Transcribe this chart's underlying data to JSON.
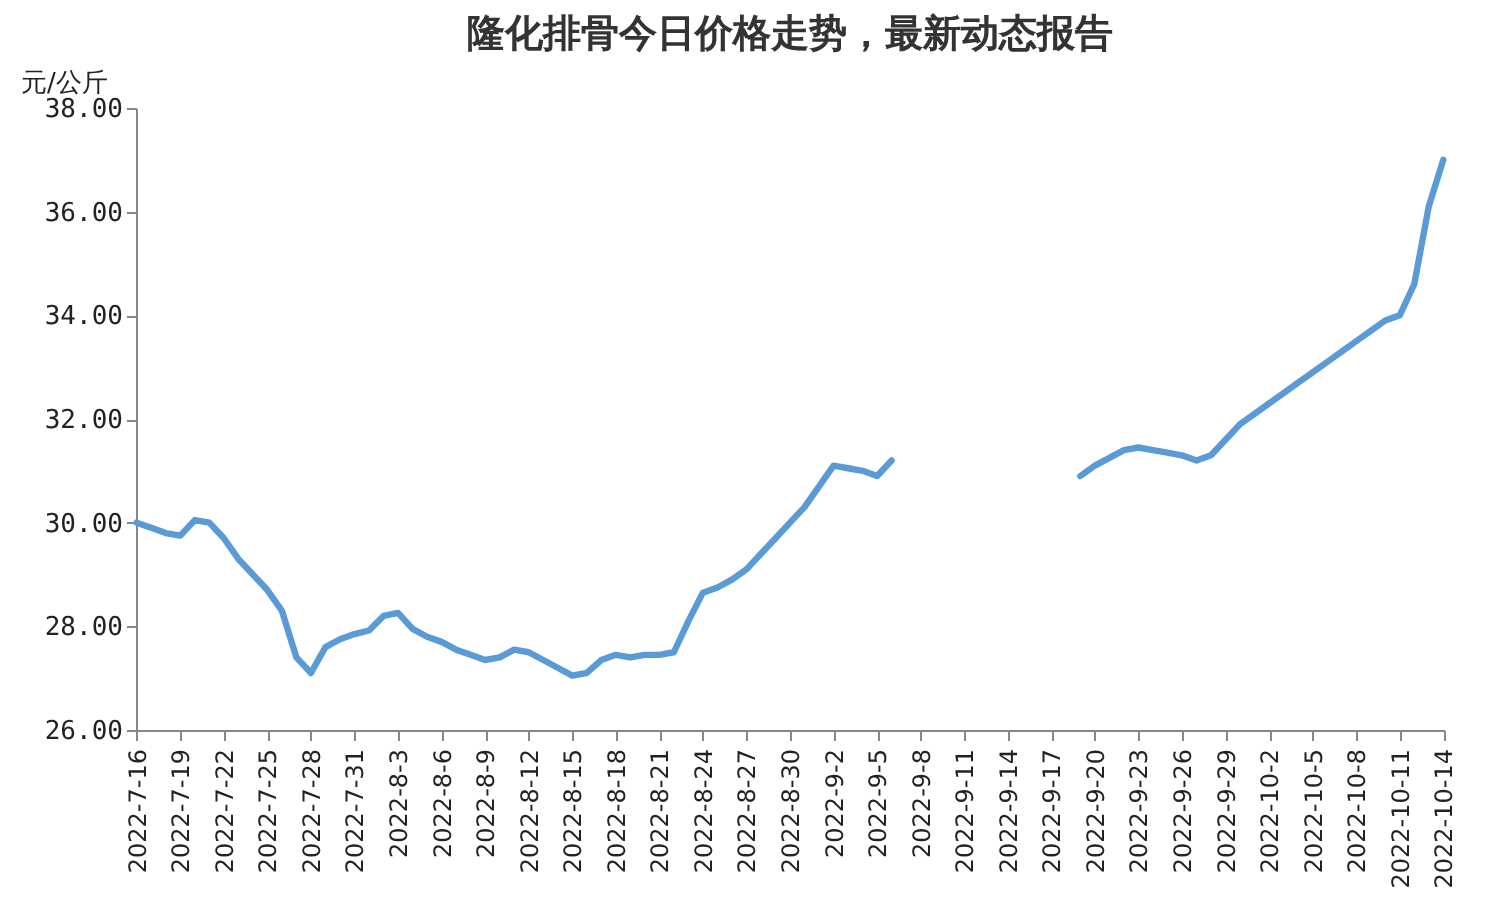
{
  "chart_data": {
    "type": "line",
    "title": "隆化排骨今日价格走势，最新动态报告",
    "ylabel": "元/公斤",
    "categories": [
      "2022-7-16",
      null,
      null,
      "2022-7-19",
      null,
      null,
      "2022-7-22",
      null,
      null,
      "2022-7-25",
      null,
      null,
      "2022-7-28",
      null,
      null,
      "2022-7-31",
      null,
      null,
      "2022-8-3",
      null,
      null,
      "2022-8-6",
      null,
      null,
      "2022-8-9",
      null,
      null,
      "2022-8-12",
      null,
      null,
      "2022-8-15",
      null,
      null,
      "2022-8-18",
      null,
      null,
      "2022-8-21",
      null,
      null,
      "2022-8-24",
      null,
      null,
      "2022-8-27",
      null,
      null,
      "2022-8-30",
      null,
      null,
      "2022-9-2",
      null,
      null,
      "2022-9-5",
      null,
      null,
      "2022-9-8",
      null,
      null,
      "2022-9-11",
      null,
      null,
      "2022-9-14",
      null,
      null,
      "2022-9-17",
      null,
      null,
      "2022-9-20",
      null,
      null,
      "2022-9-23",
      null,
      null,
      "2022-9-26",
      null,
      null,
      "2022-9-29",
      null,
      null,
      "2022-10-2",
      null,
      null,
      "2022-10-5",
      null,
      null,
      "2022-10-8",
      null,
      null,
      "2022-10-11",
      null,
      null,
      "2022-10-14"
    ],
    "series": [
      {
        "color": "#5b9bd5",
        "values": [
          30.0,
          29.9,
          29.8,
          29.75,
          30.05,
          30.0,
          29.7,
          29.3,
          29.0,
          28.7,
          28.3,
          27.4,
          27.1,
          27.6,
          27.75,
          27.85,
          27.92,
          28.2,
          28.26,
          27.95,
          27.8,
          27.7,
          27.55,
          27.45,
          27.35,
          27.4,
          27.55,
          27.5,
          27.35,
          27.2,
          27.05,
          27.1,
          27.35,
          27.45,
          27.4,
          27.45,
          27.45,
          27.5,
          28.1,
          28.65,
          28.75,
          28.9,
          29.1,
          29.4,
          29.7,
          30.0,
          30.3,
          30.7,
          31.1,
          31.05,
          31.0,
          30.9,
          31.2,
          null,
          null,
          null,
          null,
          null,
          null,
          null,
          null,
          null,
          null,
          null,
          null,
          30.9,
          31.1,
          31.25,
          31.4,
          31.45,
          31.4,
          31.35,
          31.3,
          31.2,
          31.3,
          31.6,
          31.9,
          32.1,
          32.3,
          32.5,
          32.7,
          32.9,
          33.1,
          33.3,
          33.5,
          33.7,
          33.9,
          34.0,
          34.6,
          36.1,
          37.0
        ]
      }
    ],
    "ylim": [
      26,
      38
    ],
    "yticks": [
      {
        "value": 26,
        "label": "26.00"
      },
      {
        "value": 28,
        "label": "28.00"
      },
      {
        "value": 30,
        "label": "30.00"
      },
      {
        "value": 32,
        "label": "32.00"
      },
      {
        "value": 34,
        "label": "34.00"
      },
      {
        "value": 36,
        "label": "36.00"
      },
      {
        "value": 38,
        "label": "38.00"
      }
    ],
    "grid": false,
    "legend": false
  }
}
